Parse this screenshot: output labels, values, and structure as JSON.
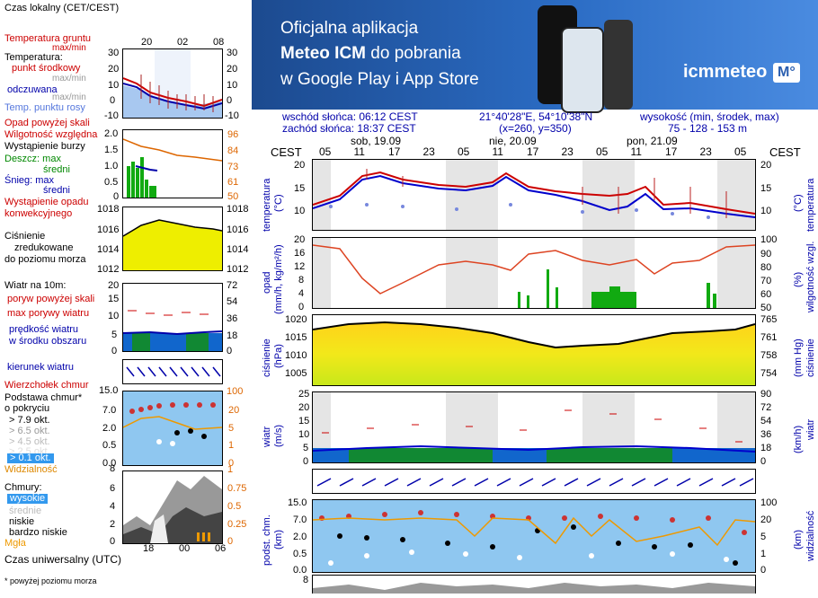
{
  "left_legend": {
    "time_local": "Czas lokalny\n(CET/CEST)",
    "temp_ground": "Temperatura gruntu",
    "max_min": "max/min",
    "temperature": "Temperatura:",
    "mid_point": "punkt środkowy",
    "max_min_grey": "max/min",
    "felt": "odczuwana",
    "max_min_blue": "max/min",
    "dew_point": "Temp. punktu rosy",
    "rain_above": "Opad powyżej skali",
    "humidity": "Wilgotność względna",
    "storm": "Wystąpienie burzy",
    "rain_max": "Deszcz: max",
    "rain_avg": "średni",
    "snow_max": "Śnieg:   max",
    "snow_avg": "średni",
    "conv_rain_1": "Wystąpienie opadu",
    "conv_rain_2": "konwekcyjnego",
    "pressure_1": "Ciśnienie",
    "pressure_2": "zredukowane",
    "pressure_3": "do poziomu morza",
    "wind_10m": "Wiatr na 10m:",
    "gust_above": "poryw powyżej skali",
    "max_gust": "max porywy wiatru",
    "wind_speed_1": "prędkość wiatru",
    "wind_speed_2": "w środku obszaru",
    "wind_dir": "kierunek wiatru",
    "wind_vane": "Wierzchołek chmur",
    "cloud_base_1": "Podstawa chmur*",
    "cloud_base_2": "o pokryciu",
    "okt_79": "> 7.9 okt.",
    "okt_65": "> 6.5 okt.",
    "okt_45": "> 4.5 okt.",
    "okt_25": "> 2.5 okt.",
    "okt_01": "> 0.1 okt.",
    "visibility": "Widzialność",
    "clouds": "Chmury:",
    "high": "wysokie",
    "medium": "średnie",
    "low": "niskie",
    "very_low": "bardzo niskie",
    "fog": "Mgła",
    "utc": "Czas uniwersalny (UTC)",
    "footnote": "* powyżej poziomu morza",
    "top_ticks": [
      "20",
      "02",
      "08"
    ],
    "bottom_ticks": [
      "18",
      "00",
      "06"
    ]
  },
  "banner": {
    "line1": "Oficjalna aplikacja",
    "line2a": "Meteo ICM",
    "line2b": " do pobrania",
    "line3": "w Google Play i App Store",
    "brand": "icmmeteo",
    "badge": "M°"
  },
  "info": {
    "sunrise": "wschód słońca: 06:12 CEST",
    "sunset": "zachód słońca: 18:37 CEST",
    "coords": "21°40'28\"E, 54°10'38\"N",
    "grid": "(x=260,  y=350)",
    "elev_label": "wysokość (min, środek, max)",
    "elev_vals": "75 - 128 - 153 m"
  },
  "time_axis": {
    "tz": "CEST",
    "days": [
      "sob, 19.09",
      "nie, 20.09",
      "pon, 21.09"
    ],
    "hours": [
      "05",
      "11",
      "17",
      "23",
      "05",
      "11",
      "17",
      "23",
      "05",
      "11",
      "17",
      "23",
      "05"
    ]
  },
  "panels": {
    "temp": {
      "left": "temperatura",
      "left_unit": "(°C)",
      "right": "temperatura",
      "right_unit": "(°C)",
      "ticks": [
        "20",
        "15",
        "10"
      ]
    },
    "rain": {
      "left": "opad",
      "left_unit": "(mm/h, kg/m²/h)",
      "right": "wilgotność wzgl.",
      "right_unit": "(%)",
      "ticks": [
        "20",
        "16",
        "12",
        "8",
        "4",
        "0"
      ],
      "rticks": [
        "100",
        "90",
        "80",
        "70",
        "60",
        "50"
      ]
    },
    "pres": {
      "left": "ciśnienie",
      "left_unit": "(hPa)",
      "right": "ciśnienie",
      "right_unit": "(mm Hg)",
      "ticks": [
        "1020",
        "1015",
        "1010",
        "1005"
      ],
      "rticks": [
        "765",
        "761",
        "758",
        "754"
      ]
    },
    "wind": {
      "left": "wiatr",
      "left_unit": "(m/s)",
      "right": "wiatr",
      "right_unit": "(km/h)",
      "ticks": [
        "25",
        "20",
        "15",
        "10",
        "5",
        "0"
      ],
      "rticks": [
        "90",
        "72",
        "54",
        "36",
        "18",
        "0"
      ]
    },
    "cloudbase": {
      "left": "podst. chm.",
      "left_unit": "(km)",
      "right": "widzialność",
      "right_unit": "(km)",
      "ticks": [
        "15.0",
        "7.0",
        "2.0",
        "0.5",
        "0.0"
      ],
      "rticks": [
        "100",
        "20",
        "5",
        "1",
        "0"
      ]
    },
    "cloud": {
      "ticks": [
        "8"
      ]
    }
  },
  "left_ticks": {
    "temp": [
      "30",
      "20",
      "10",
      "0",
      "-10"
    ],
    "rain": [
      "2.0",
      "1.5",
      "1.0",
      "0.5",
      "0"
    ],
    "rain_r": [
      "96",
      "84",
      "73",
      "61",
      "50"
    ],
    "pres": [
      "1018",
      "1016",
      "1014",
      "1012"
    ],
    "wind": [
      "20",
      "15",
      "10",
      "5",
      "0"
    ],
    "wind_r": [
      "72",
      "54",
      "36",
      "18",
      "0"
    ],
    "cb": [
      "15.0",
      "7.0",
      "2.0",
      "0.5",
      "0.0"
    ],
    "cb_r": [
      "100",
      "20",
      "5",
      "1",
      "0"
    ],
    "cl": [
      "8",
      "6",
      "4",
      "2",
      "0"
    ],
    "cl_r": [
      "1",
      "0.75",
      "0.5",
      "0.25",
      "0"
    ]
  }
}
